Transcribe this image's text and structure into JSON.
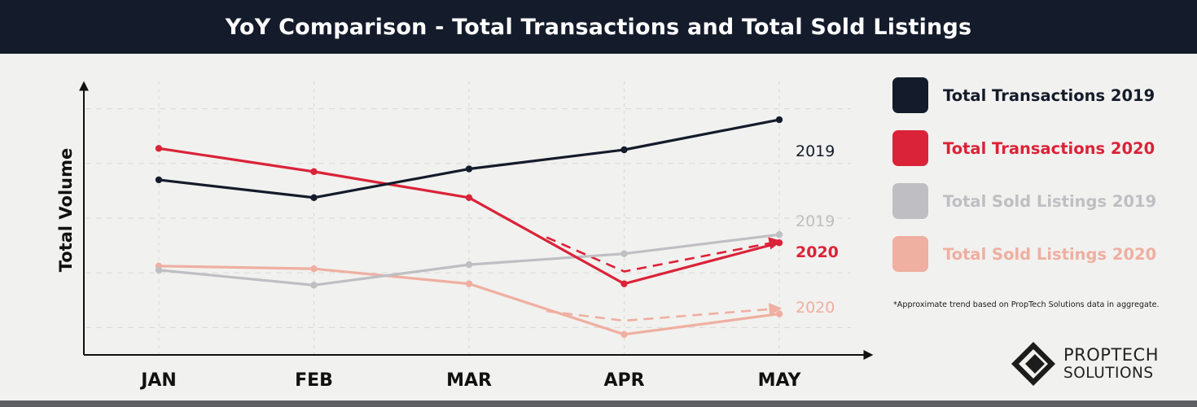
{
  "header": {
    "title": "YoY Comparison - Total Transactions and Total Sold Listings"
  },
  "colors": {
    "header_bg": "#141b2b",
    "page_bg": "#f1f1ef",
    "transactions_2019": "#141b2b",
    "transactions_2020": "#da2338",
    "sold_2019": "#bfbfc3",
    "sold_2020": "#efafa1"
  },
  "chart_data": {
    "type": "line",
    "title": "YoY Comparison - Total Transactions and Total Sold Listings",
    "categories": [
      "JAN",
      "FEB",
      "MAR",
      "APR",
      "MAY"
    ],
    "ylabel": "Total Volume",
    "xlabel": "",
    "ylim": [
      0,
      100
    ],
    "grid": true,
    "legend_position": "right",
    "series": [
      {
        "name": "Total Transactions 2019",
        "end_label": "2019",
        "color": "#141b2b",
        "values": [
          64,
          57.5,
          68,
          75,
          86
        ]
      },
      {
        "name": "Total Transactions 2020",
        "end_label": "2020",
        "color": "#da2338",
        "values": [
          75.5,
          67,
          57.5,
          26,
          41
        ]
      },
      {
        "name": "Total Sold Listings 2019",
        "end_label": "2019",
        "color": "#bfbfc3",
        "values": [
          31,
          25.5,
          33,
          37,
          44
        ]
      },
      {
        "name": "Total Sold Listings 2020",
        "end_label": "2020",
        "color": "#efafa1",
        "values": [
          32.5,
          31.5,
          26,
          7.5,
          15
        ]
      }
    ],
    "trend_annotations": [
      {
        "series": "Total Transactions 2020",
        "style": "dashed-arrow",
        "x": [
          3.5,
          4.0,
          5.0
        ],
        "values": [
          43,
          30.5,
          41.5
        ]
      },
      {
        "series": "Total Sold Listings 2020",
        "style": "dashed-arrow",
        "x": [
          3.5,
          4.0,
          5.0
        ],
        "values": [
          16,
          12.5,
          17
        ]
      }
    ]
  },
  "legend": {
    "items": [
      {
        "label": "Total Transactions 2019",
        "color": "#141b2b"
      },
      {
        "label": "Total Transactions 2020",
        "color": "#da2338"
      },
      {
        "label": "Total Sold Listings 2019",
        "color": "#bfbfc3"
      },
      {
        "label": "Total Sold Listings 2020",
        "color": "#efafa1"
      }
    ]
  },
  "footnote": "*Approximate trend based on PropTech Solutions data in aggregate.",
  "logo": {
    "line1": "PROPTECH",
    "line2": "SOLUTIONS",
    "icon": "diamond-logo-icon"
  }
}
